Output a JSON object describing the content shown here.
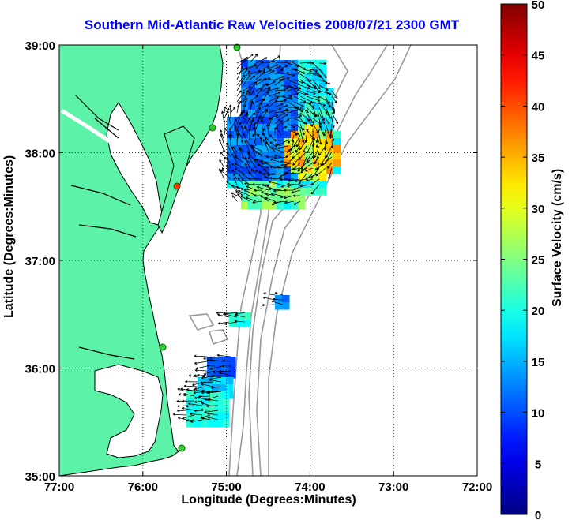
{
  "chart_data": {
    "type": "heatmap",
    "title": "Southern Mid-Atlantic Raw Velocities 2008/07/21 2300 GMT",
    "xlabel": "Longitude (Degrees:Minutes)",
    "ylabel": "Latitude (Degrees:Minutes)",
    "colorbar_label": "Surface Velocity (cm/s)",
    "xticks": [
      "77:00",
      "76:00",
      "75:00",
      "74:00",
      "73:00",
      "72:00"
    ],
    "yticks": [
      "39:00",
      "38:00",
      "37:00",
      "36:00",
      "35:00"
    ],
    "xlim": [
      -77,
      -72
    ],
    "ylim": [
      35,
      39
    ],
    "colorbar_range": [
      0,
      50
    ],
    "colorbar_ticks": [
      0,
      5,
      10,
      15,
      20,
      25,
      30,
      35,
      40,
      45,
      50
    ],
    "grid": "dotted",
    "land_color": "#5cf2a8",
    "title_color": "#0000ff"
  }
}
